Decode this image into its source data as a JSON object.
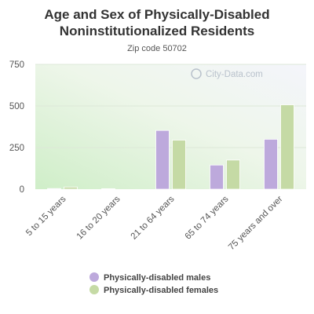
{
  "chart_data": {
    "type": "bar",
    "title_line1": "Age and Sex of Physically-Disabled",
    "title_line2": "Noninstitutionalized Residents",
    "subtitle": "Zip code 50702",
    "watermark": "City-Data.com",
    "categories": [
      "5 to 15 years",
      "16 to 20 years",
      "21 to 64 years",
      "65 to 74 years",
      "75 years and over"
    ],
    "series": [
      {
        "name": "Physically-disabled males",
        "color": "#bda9dc",
        "values": [
          4,
          3,
          353,
          145,
          300
        ]
      },
      {
        "name": "Physically-disabled females",
        "color": "#c5daa5",
        "values": [
          13,
          0,
          295,
          175,
          507
        ]
      }
    ],
    "ylim": [
      0,
      750
    ],
    "yticks": [
      "0",
      "250",
      "500",
      "750"
    ],
    "xlabel": "",
    "ylabel": "",
    "grid": true,
    "legend": "bottom"
  }
}
